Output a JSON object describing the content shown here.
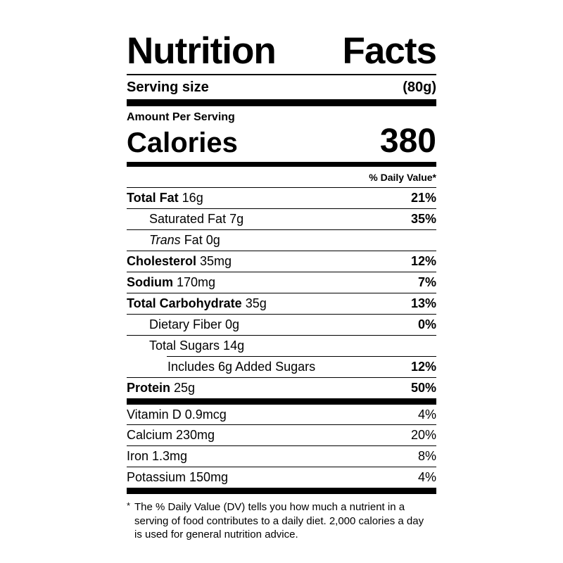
{
  "label": {
    "title": {
      "word1": "Nutrition",
      "word2": "Facts"
    },
    "serving": {
      "label": "Serving size",
      "value": "(80g)"
    },
    "amount_per_serving": "Amount Per Serving",
    "calories": {
      "label": "Calories",
      "value": "380"
    },
    "daily_value_header": "% Daily Value*",
    "main_rows": [
      {
        "parts": [
          {
            "t": "Total Fat",
            "b": true
          },
          {
            "t": " 16g"
          }
        ],
        "dv": "21%",
        "dv_bold": true,
        "indent": 0,
        "rule_top": "none"
      },
      {
        "parts": [
          {
            "t": "Saturated Fat 7g"
          }
        ],
        "dv": "35%",
        "dv_bold": true,
        "indent": 1,
        "rule_top": "full"
      },
      {
        "parts": [
          {
            "t": "Trans",
            "i": true
          },
          {
            "t": " Fat 0g"
          }
        ],
        "dv": "",
        "dv_bold": false,
        "indent": 1,
        "rule_top": "full"
      },
      {
        "parts": [
          {
            "t": "Cholesterol",
            "b": true
          },
          {
            "t": " 35mg"
          }
        ],
        "dv": "12%",
        "dv_bold": true,
        "indent": 0,
        "rule_top": "full"
      },
      {
        "parts": [
          {
            "t": "Sodium",
            "b": true
          },
          {
            "t": " 170mg"
          }
        ],
        "dv": "7%",
        "dv_bold": true,
        "indent": 0,
        "rule_top": "full"
      },
      {
        "parts": [
          {
            "t": "Total Carbohydrate",
            "b": true
          },
          {
            "t": " 35g"
          }
        ],
        "dv": "13%",
        "dv_bold": true,
        "indent": 0,
        "rule_top": "full"
      },
      {
        "parts": [
          {
            "t": "Dietary Fiber 0g"
          }
        ],
        "dv": "0%",
        "dv_bold": true,
        "indent": 1,
        "rule_top": "full"
      },
      {
        "parts": [
          {
            "t": "Total Sugars 14g"
          }
        ],
        "dv": "",
        "dv_bold": false,
        "indent": 1,
        "rule_top": "full"
      },
      {
        "parts": [
          {
            "t": "Includes 6g Added Sugars"
          }
        ],
        "dv": "12%",
        "dv_bold": true,
        "indent": 2,
        "rule_top": "partial"
      },
      {
        "parts": [
          {
            "t": "Protein",
            "b": true
          },
          {
            "t": " 25g"
          }
        ],
        "dv": "50%",
        "dv_bold": true,
        "indent": 0,
        "rule_top": "full"
      }
    ],
    "vitamin_rows": [
      {
        "parts": [
          {
            "t": "Vitamin D 0.9mcg"
          }
        ],
        "dv": "4%",
        "dv_bold": false,
        "indent": 0,
        "rule_top": "none"
      },
      {
        "parts": [
          {
            "t": "Calcium 230mg"
          }
        ],
        "dv": "20%",
        "dv_bold": false,
        "indent": 0,
        "rule_top": "full"
      },
      {
        "parts": [
          {
            "t": "Iron 1.3mg"
          }
        ],
        "dv": "8%",
        "dv_bold": false,
        "indent": 0,
        "rule_top": "full"
      },
      {
        "parts": [
          {
            "t": "Potassium 150mg"
          }
        ],
        "dv": "4%",
        "dv_bold": false,
        "indent": 0,
        "rule_top": "full"
      }
    ],
    "footnote_marker": "*",
    "footnote": "The % Daily Value (DV) tells you how much a nutrient in a serving of food contributes to a daily diet. 2,000 calories a day is used for general nutrition advice."
  },
  "colors": {
    "text": "#000000",
    "background": "#ffffff"
  }
}
